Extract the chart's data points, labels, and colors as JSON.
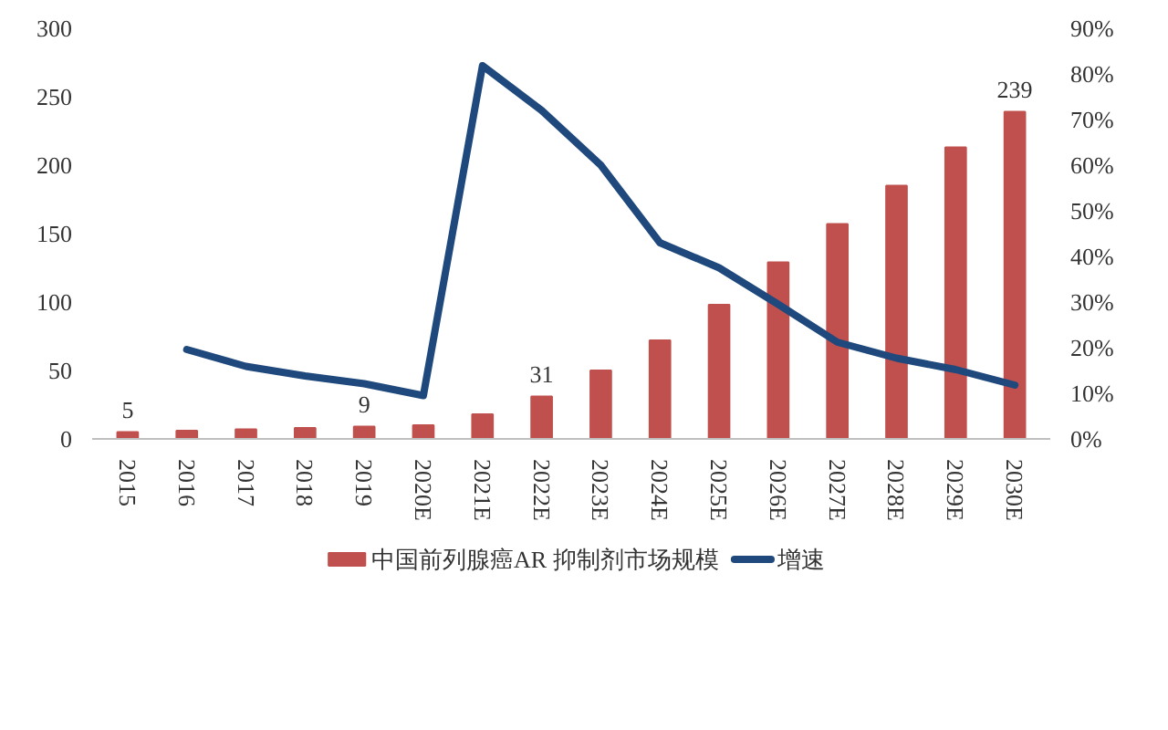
{
  "chart_data": {
    "type": "bar",
    "categories": [
      "2015",
      "2016",
      "2017",
      "2018",
      "2019",
      "2020E",
      "2021E",
      "2022E",
      "2023E",
      "2024E",
      "2025E",
      "2026E",
      "2027E",
      "2028E",
      "2029E",
      "2030E"
    ],
    "series": [
      {
        "name": "中国前列腺癌AR 抑制剂市场规模",
        "color": "#c0504d",
        "values": [
          5,
          6,
          7,
          8,
          9,
          10,
          18,
          31,
          50,
          72,
          98,
          129,
          157,
          185,
          213,
          239
        ],
        "value_labels": [
          "5",
          null,
          null,
          null,
          "9",
          null,
          null,
          "31",
          null,
          null,
          null,
          null,
          null,
          null,
          null,
          "239"
        ]
      },
      {
        "name": "增速",
        "type": "line",
        "axis": "y2",
        "color": "#1f497d",
        "values": [
          null,
          19.6,
          15.9,
          13.8,
          12.1,
          9.5,
          81.8,
          72,
          60,
          43,
          37.5,
          29.5,
          21.2,
          17.7,
          15.2,
          11.8
        ]
      }
    ],
    "ylim": [
      0,
      300
    ],
    "yticks": [
      0,
      50,
      100,
      150,
      200,
      250,
      300
    ],
    "y2lim": [
      0,
      90
    ],
    "y2ticks": [
      {
        "value": 0,
        "label": "0%"
      },
      {
        "value": 10,
        "label": "10%"
      },
      {
        "value": 20,
        "label": "20%"
      },
      {
        "value": 30,
        "label": "30%"
      },
      {
        "value": 40,
        "label": "40%"
      },
      {
        "value": 50,
        "label": "50%"
      },
      {
        "value": 60,
        "label": "60%"
      },
      {
        "value": 70,
        "label": "70%"
      },
      {
        "value": 80,
        "label": "80%"
      },
      {
        "value": 90,
        "label": "90%"
      }
    ],
    "legend": "bottom",
    "grid": false
  }
}
